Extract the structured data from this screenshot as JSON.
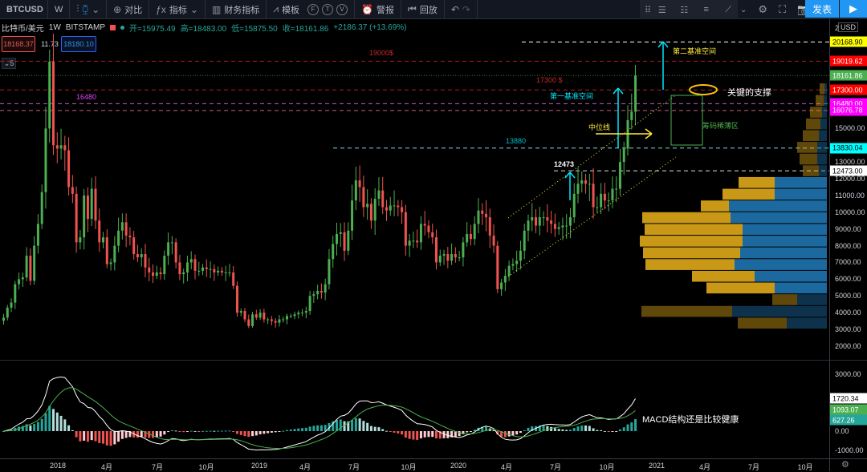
{
  "toolbar": {
    "symbol": "BTCUSD",
    "interval": "W",
    "compare_label": "对比",
    "indicators_label": "指标",
    "financials_label": "财务指标",
    "templates_label": "模板",
    "circle_buttons": [
      "F",
      "T",
      "V"
    ],
    "alert_label": "警报",
    "replay_label": "回放",
    "publish_label": "发表"
  },
  "legend": {
    "name": "比特币/美元",
    "interval": "1W",
    "exchange": "BITSTAMP",
    "open": "开=15975.49",
    "high": "高=18483.00",
    "low": "低=15875.50",
    "close": "收=18161.86",
    "change": "+2186.37 (+13.69%)",
    "bid": "18168.37",
    "spread": "11.73",
    "ask": "18180.10",
    "collapse_count": "5"
  },
  "price_axis": {
    "currency": "USD",
    "ticks": [
      "21000.00",
      "15000.00",
      "13000.00",
      "12000.00",
      "11000.00",
      "10000.00",
      "9000.00",
      "8000.00",
      "7000.00",
      "6000.00",
      "5000.00",
      "4000.00",
      "3000.00",
      "2000.00"
    ],
    "tags": [
      {
        "label": "20168.90",
        "value": 20168.9,
        "bg": "#ffff00",
        "fg": "#000000"
      },
      {
        "label": "19019.62",
        "value": 19019.62,
        "bg": "#ff0000",
        "fg": "#ffffff"
      },
      {
        "label": "18161.86",
        "value": 18161.86,
        "bg": "#4caf50",
        "fg": "#ffffff"
      },
      {
        "label": "17300.00",
        "value": 17300,
        "bg": "#ff0000",
        "fg": "#ffffff"
      },
      {
        "label": "16480.00",
        "value": 16480,
        "bg": "#ff00ff",
        "fg": "#ffffff"
      },
      {
        "label": "16076.78",
        "value": 16076.78,
        "bg": "#ff00ff",
        "fg": "#ffffff"
      },
      {
        "label": "13830.04",
        "value": 13830.04,
        "bg": "#00ffff",
        "fg": "#000000"
      },
      {
        "label": "12473.00",
        "value": 12473,
        "bg": "#ffffff",
        "fg": "#000000"
      }
    ]
  },
  "macd_axis": {
    "ticks": [
      "3000.00",
      "0.00",
      "-1000.00"
    ],
    "tags": [
      {
        "label": "1720.34",
        "value": 1720.34,
        "bg": "#ffffff",
        "fg": "#000000"
      },
      {
        "label": "1093.07",
        "value": 1093.07,
        "bg": "#4caf50",
        "fg": "#ffffff"
      },
      {
        "label": "627.26",
        "value": 627.26,
        "bg": "#26a69a",
        "fg": "#ffffff"
      }
    ]
  },
  "time_axis": [
    "2018",
    "4月",
    "7月",
    "10月",
    "2019",
    "4月",
    "7月",
    "10月",
    "2020",
    "4月",
    "7月",
    "10月",
    "2021",
    "4月",
    "7月",
    "10月"
  ],
  "annotations": {
    "level_19000": "19000$",
    "level_17300": "17300 $",
    "level_16480": "16480",
    "level_13880": "13880",
    "level_12473": "12473",
    "second_space": "第二基准空间",
    "first_space": "第一基准空间",
    "midline": "中位线",
    "key_support": "关键的支撑",
    "thin_chip_zone": "筹码稀薄区",
    "macd_note": "MACD结构还是比较健康"
  },
  "chart_data": {
    "type": "candlestick",
    "symbol": "BTCUSD",
    "interval": "1W",
    "start_week": "2017-09-18",
    "weekly_close": [
      3700,
      4300,
      4600,
      5700,
      6000,
      6100,
      7400,
      5900,
      8000,
      9300,
      11200,
      15000,
      19000,
      14000,
      13800,
      14000,
      13700,
      11500,
      11100,
      8200,
      8500,
      11000,
      9600,
      11400,
      9500,
      8200,
      8500,
      6900,
      7000,
      8000,
      8900,
      9400,
      8600,
      8500,
      7500,
      7300,
      7500,
      6700,
      6400,
      6200,
      6400,
      6300,
      7400,
      8200,
      8200,
      7000,
      6300,
      6400,
      7000,
      7200,
      6500,
      6500,
      6700,
      6600,
      6600,
      6400,
      6500,
      6400,
      6400,
      6400,
      5600,
      4000,
      4100,
      3600,
      3200,
      3900,
      3700,
      4000,
      3600,
      3600,
      3500,
      3400,
      3600,
      3600,
      3800,
      3800,
      3900,
      4000,
      4000,
      4100,
      5000,
      5100,
      5300,
      5200,
      5700,
      7200,
      8100,
      8700,
      8800,
      7700,
      8900,
      10700,
      11900,
      11500,
      10300,
      10500,
      9500,
      10800,
      11300,
      10300,
      10100,
      10400,
      10400,
      10300,
      10000,
      8000,
      8300,
      8300,
      8200,
      9300,
      9200,
      8800,
      8500,
      7000,
      7400,
      7500,
      7100,
      7500,
      7300,
      7300,
      8200,
      8700,
      8400,
      9300,
      10100,
      9900,
      9700,
      8600,
      8000,
      5400,
      5800,
      6200,
      6800,
      6900,
      7100,
      7700,
      8900,
      9500,
      9700,
      9200,
      9700,
      9700,
      9500,
      9300,
      9000,
      9100,
      9200,
      9200,
      9700,
      11100,
      11700,
      11900,
      11700,
      11700,
      10300,
      10300,
      11100,
      10700,
      10700,
      11400,
      11400,
      13000,
      13800,
      15500,
      16000,
      18161.86
    ],
    "ylim": [
      1500,
      21500
    ],
    "macd": {
      "fast": 12,
      "slow": 26,
      "signal": 9
    },
    "volume_profile": [
      {
        "price": 3000,
        "up": 61,
        "down": 50,
        "value_area": false
      },
      {
        "price": 3700,
        "up": 113,
        "down": 118,
        "value_area": false
      },
      {
        "price": 4400,
        "up": 31,
        "down": 37,
        "value_area": false
      },
      {
        "price": 5100,
        "up": 85,
        "down": 65,
        "value_area": true
      },
      {
        "price": 5800,
        "up": 78,
        "down": 90,
        "value_area": true
      },
      {
        "price": 6500,
        "up": 111,
        "down": 115,
        "value_area": true
      },
      {
        "price": 7200,
        "up": 121,
        "down": 108,
        "value_area": true
      },
      {
        "price": 7900,
        "up": 128,
        "down": 105,
        "value_area": true
      },
      {
        "price": 8600,
        "up": 122,
        "down": 105,
        "value_area": true
      },
      {
        "price": 9300,
        "up": 110,
        "down": 120,
        "value_area": true
      },
      {
        "price": 10000,
        "up": 35,
        "down": 122,
        "value_area": true
      },
      {
        "price": 10700,
        "up": 65,
        "down": 65,
        "value_area": true
      },
      {
        "price": 11400,
        "up": 45,
        "down": 65,
        "value_area": true
      },
      {
        "price": 12100,
        "up": 20,
        "down": 10,
        "value_area": false
      },
      {
        "price": 12800,
        "up": 22,
        "down": 12,
        "value_area": false
      },
      {
        "price": 13500,
        "up": 25,
        "down": 12,
        "value_area": false
      },
      {
        "price": 14200,
        "up": 20,
        "down": 10,
        "value_area": false
      },
      {
        "price": 14900,
        "up": 18,
        "down": 8,
        "value_area": false
      },
      {
        "price": 15600,
        "up": 15,
        "down": 6,
        "value_area": false
      },
      {
        "price": 16300,
        "up": 10,
        "down": 4,
        "value_area": false
      },
      {
        "price": 17000,
        "up": 6,
        "down": 3,
        "value_area": false
      }
    ],
    "colors": {
      "up": "#4caf50",
      "down": "#ef5350",
      "vp_up": "#d4a017",
      "vp_down": "#1e6fa8"
    }
  }
}
